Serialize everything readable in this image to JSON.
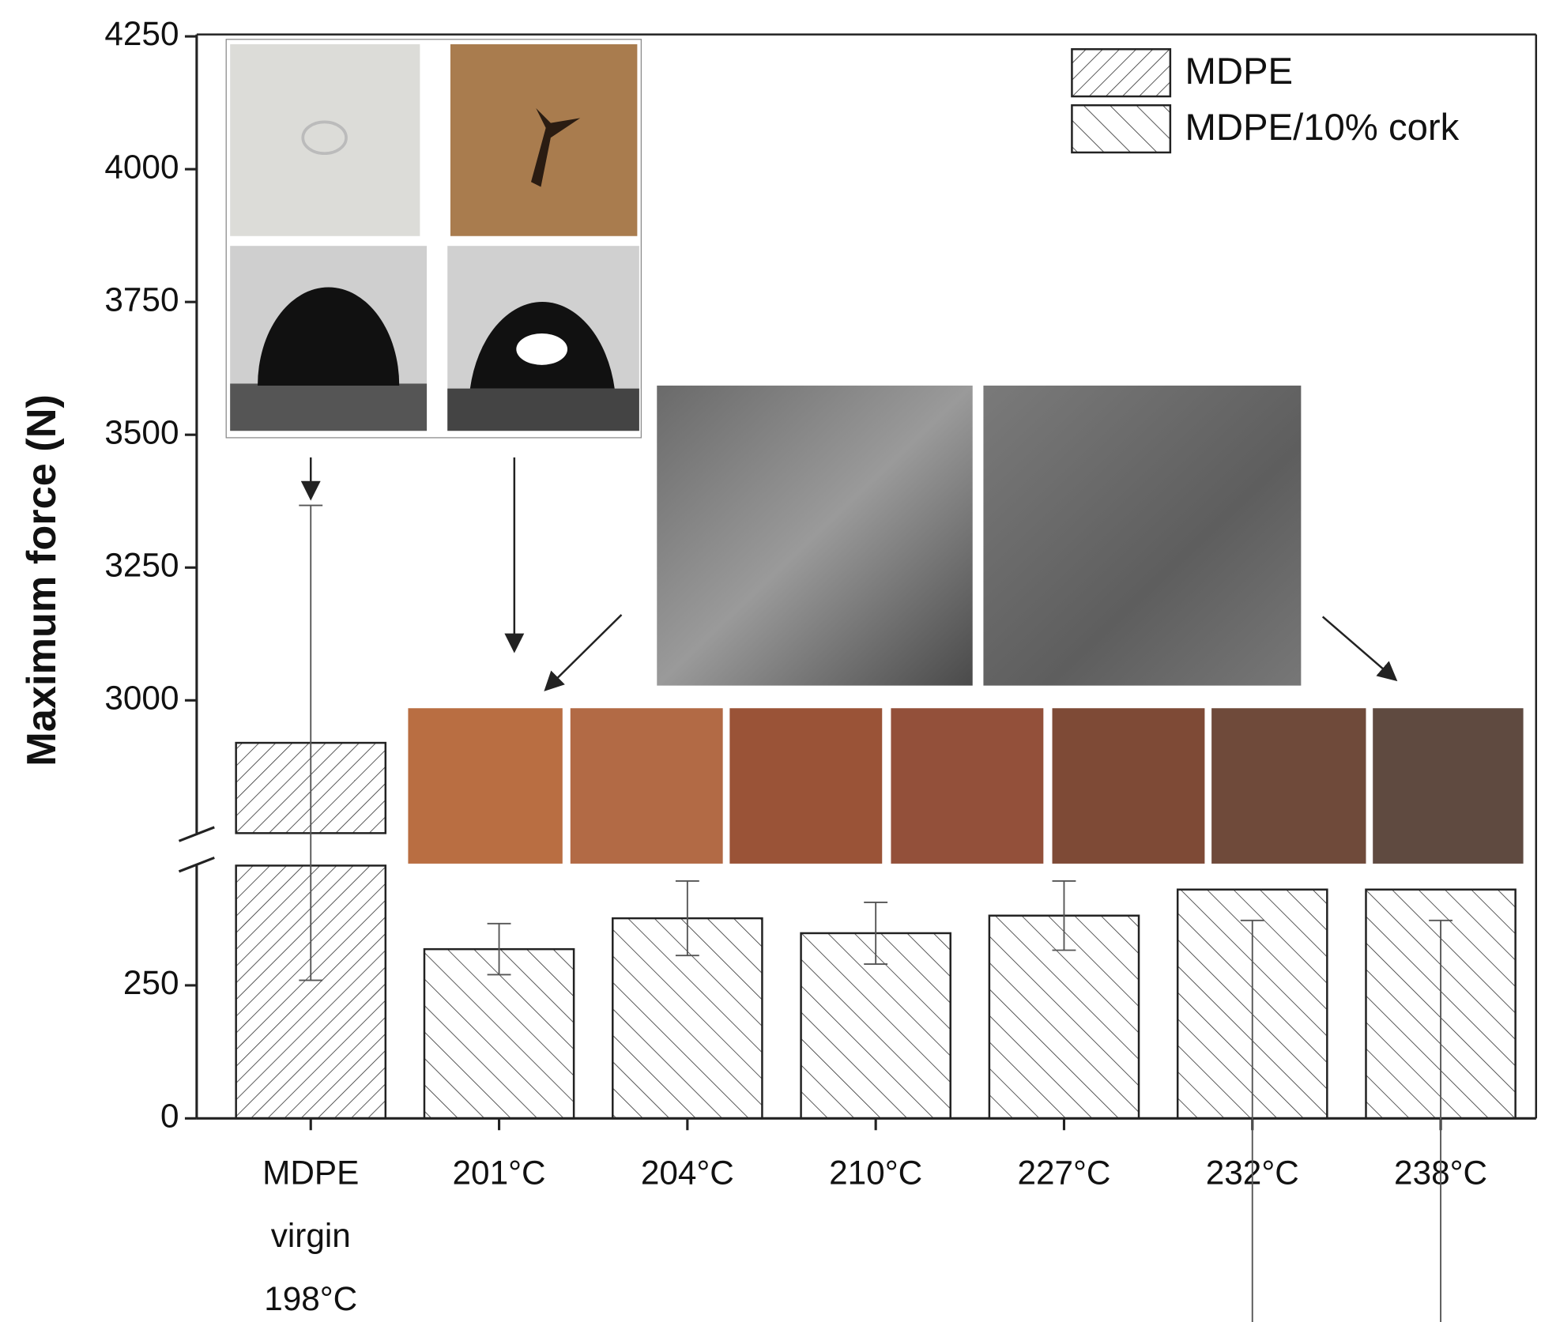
{
  "chart_data": {
    "type": "bar",
    "y_label": "Maximum force (N)",
    "categories": [
      "MDPE virgin 198°C",
      "201°C",
      "204°C",
      "210°C",
      "227°C",
      "232°C",
      "238°C"
    ],
    "series": [
      {
        "name": "MDPE",
        "color": "#222222",
        "hatch": "\\",
        "values": [
          2920,
          null,
          null,
          null,
          null,
          null,
          null
        ],
        "errors": [
          447,
          null,
          null,
          null,
          null,
          null,
          null
        ]
      },
      {
        "name": "MDPE/10% cork",
        "color": "#222222",
        "hatch": "/",
        "values": [
          null,
          318,
          376,
          348,
          381,
          430,
          430
        ],
        "errors": [
          null,
          48,
          70,
          58,
          65,
          58,
          58
        ]
      }
    ],
    "ylim": [
      [
        0,
        475
      ],
      [
        2750,
        4250
      ]
    ],
    "yticks": [
      0,
      250,
      3000,
      3250,
      3500,
      3750,
      4000,
      4250
    ],
    "legend": "upper right",
    "grid": false
  }
}
